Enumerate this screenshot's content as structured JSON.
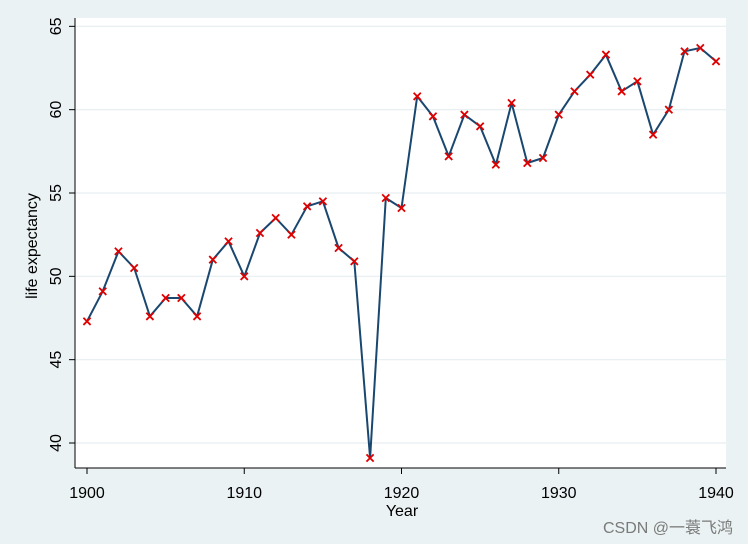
{
  "chart_data": {
    "type": "line",
    "xlabel": "Year",
    "ylabel": "life expectancy",
    "xlim": [
      1900,
      1940
    ],
    "ylim": [
      38.5,
      65.5
    ],
    "x_ticks": [
      1900,
      1910,
      1920,
      1930,
      1940
    ],
    "y_ticks": [
      40,
      45,
      50,
      55,
      60,
      65
    ],
    "grid": "horizontal",
    "colors": {
      "line": "#1a476f",
      "marker": "#e00000",
      "plot_bg": "#ffffff",
      "outer_bg": "#eaf2f3",
      "grid": "#e6eef0"
    },
    "series": [
      {
        "x": [
          1900,
          1901,
          1902,
          1903,
          1904,
          1905,
          1906,
          1907,
          1908,
          1909,
          1910,
          1911,
          1912,
          1913,
          1914,
          1915,
          1916,
          1917,
          1918,
          1919,
          1920,
          1921,
          1922,
          1923,
          1924,
          1925,
          1926,
          1927,
          1928,
          1929,
          1930,
          1931,
          1932,
          1933,
          1934,
          1935,
          1936,
          1937,
          1938,
          1939,
          1940
        ],
        "y": [
          47.3,
          49.1,
          51.5,
          50.5,
          47.6,
          48.7,
          48.7,
          47.6,
          51.0,
          52.1,
          50.0,
          52.6,
          53.5,
          52.5,
          54.2,
          54.5,
          51.7,
          50.9,
          39.1,
          54.7,
          54.1,
          60.8,
          59.6,
          57.2,
          59.7,
          59.0,
          56.7,
          60.4,
          56.8,
          57.1,
          59.7,
          61.1,
          62.1,
          63.3,
          61.1,
          61.7,
          58.5,
          60.0,
          63.5,
          63.7,
          62.9
        ]
      }
    ]
  },
  "watermark": "CSDN @一蓑飞鸿"
}
